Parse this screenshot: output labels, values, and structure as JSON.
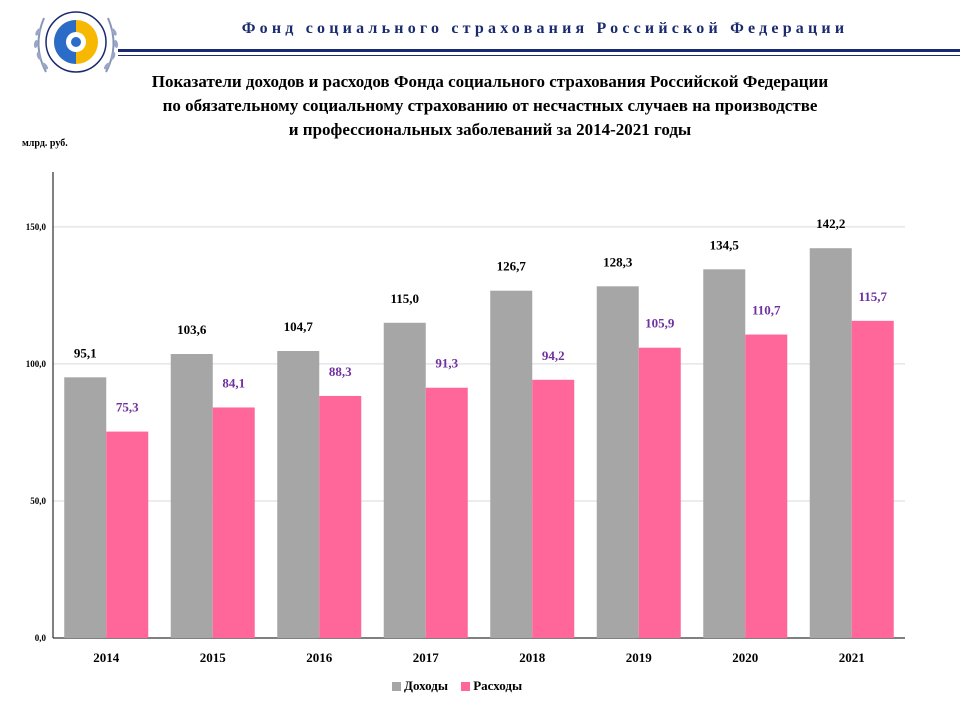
{
  "header": {
    "org_name": "Фонд социального страхования Российской Федерации",
    "logo_icon": "fss-emblem-icon",
    "accent_color": "#1a2a6e"
  },
  "chart_title": {
    "line1": "Показатели доходов и расходов Фонда социального страхования Российской Федерации",
    "line2": "по обязательному социальному страхованию от несчастных случаев на производстве",
    "line3": "и профессиональных заболеваний за 2014-2021 годы"
  },
  "unit_label": "млрд. руб.",
  "chart_data": {
    "type": "bar",
    "categories": [
      "2014",
      "2015",
      "2016",
      "2017",
      "2018",
      "2019",
      "2020",
      "2021"
    ],
    "series": [
      {
        "name": "Доходы",
        "color": "#a6a6a6",
        "values": [
          95.1,
          103.6,
          104.7,
          115.0,
          126.7,
          128.3,
          134.5,
          142.2
        ],
        "labels": [
          "95,1",
          "103,6",
          "104,7",
          "115,0",
          "126,7",
          "128,3",
          "134,5",
          "142,2"
        ]
      },
      {
        "name": "Расходы",
        "color": "#ff6699",
        "values": [
          75.3,
          84.1,
          88.3,
          91.3,
          94.2,
          105.9,
          110.7,
          115.7
        ],
        "labels": [
          "75,3",
          "84,1",
          "88,3",
          "91,3",
          "94,2",
          "105,9",
          "110,7",
          "115,7"
        ]
      }
    ],
    "yticks": [
      "0,0",
      "50,0",
      "100,0",
      "150,0"
    ],
    "ylim": [
      0,
      170
    ],
    "grid": true,
    "legend_position": "bottom"
  }
}
